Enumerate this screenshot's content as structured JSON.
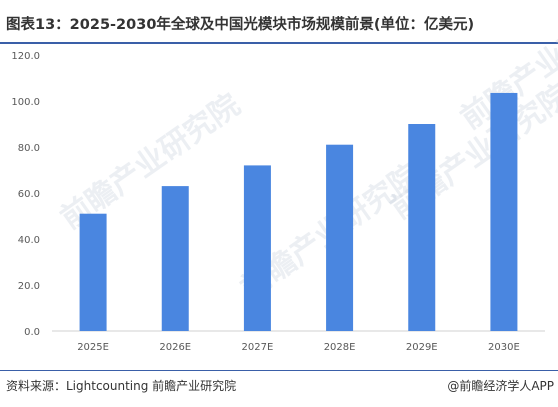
{
  "title": "图表13：2025-2030年全球及中国光模块市场规模前景(单位：亿美元)",
  "footer": {
    "source": "资料来源：Lightcounting 前瞻产业研究院",
    "brand": "@前瞻经济学人APP"
  },
  "watermark": "前瞻产业研究院",
  "colors": {
    "bar": "#4a86e0",
    "axis": "#d0d0d0",
    "text": "#595959",
    "rule": "#3a5fa8"
  },
  "chart_data": {
    "type": "bar",
    "categories": [
      "2025E",
      "2026E",
      "2027E",
      "2028E",
      "2029E",
      "2030E"
    ],
    "values": [
      51,
      63,
      72,
      81,
      90,
      103.5
    ],
    "ylim": [
      0,
      120
    ],
    "yticks": [
      "0.0",
      "20.0",
      "40.0",
      "60.0",
      "80.0",
      "100.0",
      "120.0"
    ],
    "grid": false,
    "legend": "none"
  }
}
